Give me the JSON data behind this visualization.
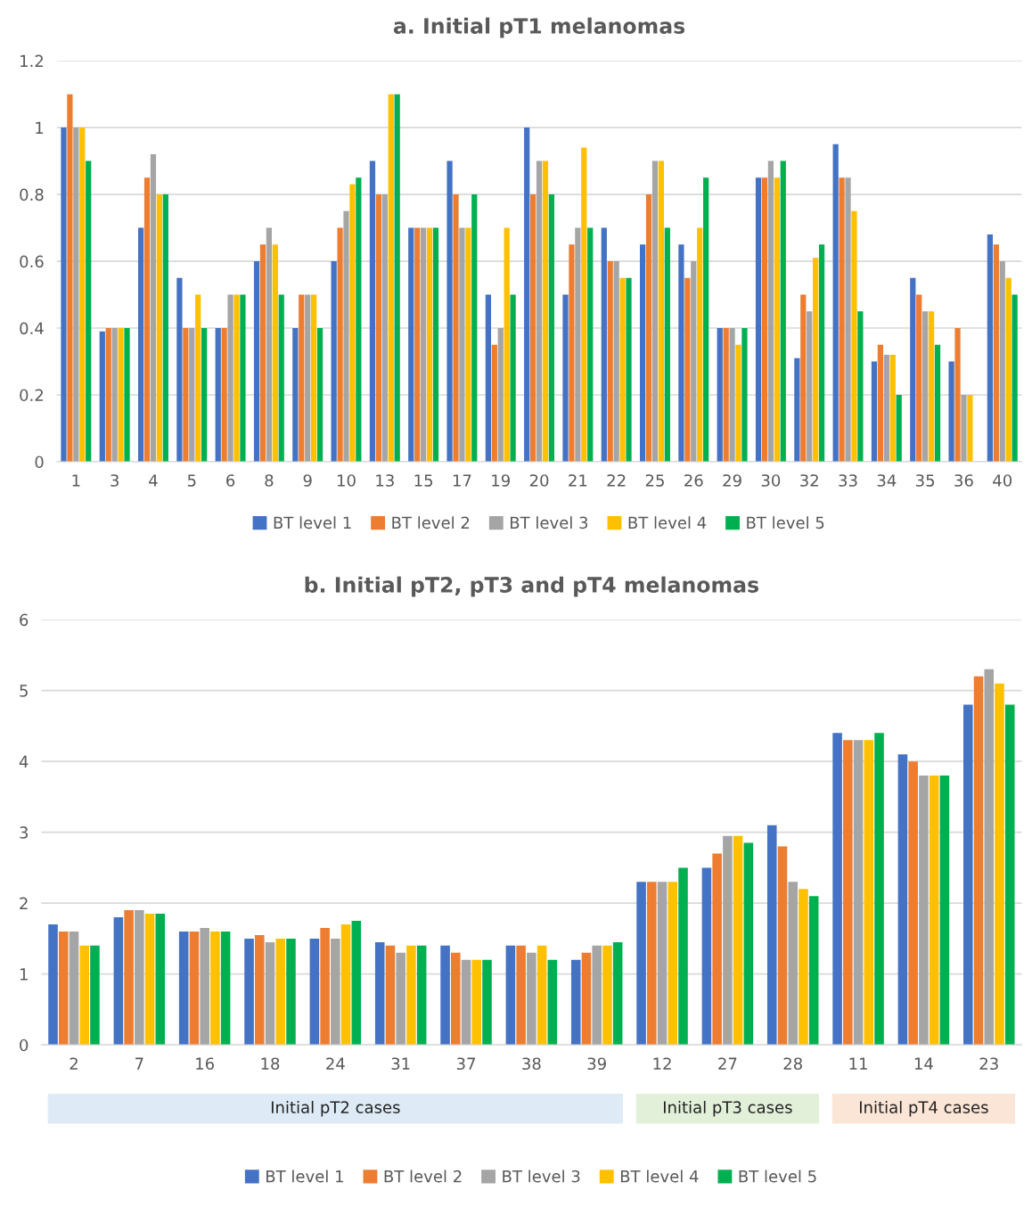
{
  "chart_data": [
    {
      "type": "bar",
      "title": "a. Initial pT1 melanomas",
      "categories": [
        "1",
        "3",
        "4",
        "5",
        "6",
        "8",
        "9",
        "10",
        "13",
        "15",
        "17",
        "19",
        "20",
        "21",
        "22",
        "25",
        "26",
        "29",
        "30",
        "32",
        "33",
        "34",
        "35",
        "36",
        "40"
      ],
      "ylim": [
        0,
        1.2
      ],
      "yticks": [
        {
          "value": 0,
          "label": "0"
        },
        0.2,
        0.4,
        0.6,
        0.8,
        {
          "value": 1,
          "label": "1"
        },
        1.2
      ],
      "grid": "y",
      "legend": "bottom",
      "series": [
        {
          "name": "BT level 1",
          "color": "#4472c4",
          "values": [
            1.0,
            0.39,
            0.7,
            0.55,
            0.4,
            0.6,
            0.4,
            0.6,
            0.9,
            0.7,
            0.9,
            0.5,
            1.0,
            0.5,
            0.7,
            0.65,
            0.65,
            0.4,
            0.85,
            0.31,
            0.95,
            0.3,
            0.55,
            0.3,
            0.68
          ]
        },
        {
          "name": "BT level 2",
          "color": "#ed7d31",
          "values": [
            1.1,
            0.4,
            0.85,
            0.4,
            0.4,
            0.65,
            0.5,
            0.7,
            0.8,
            0.7,
            0.8,
            0.35,
            0.8,
            0.65,
            0.6,
            0.8,
            0.55,
            0.4,
            0.85,
            0.5,
            0.85,
            0.35,
            0.5,
            0.4,
            0.65
          ]
        },
        {
          "name": "BT level 3",
          "color": "#a5a5a5",
          "values": [
            1.0,
            0.4,
            0.92,
            0.4,
            0.5,
            0.7,
            0.5,
            0.75,
            0.8,
            0.7,
            0.7,
            0.4,
            0.9,
            0.7,
            0.6,
            0.9,
            0.6,
            0.4,
            0.9,
            0.45,
            0.85,
            0.32,
            0.45,
            0.2,
            0.6
          ]
        },
        {
          "name": "BT level 4",
          "color": "#ffc000",
          "values": [
            1.0,
            0.4,
            0.8,
            0.5,
            0.5,
            0.65,
            0.5,
            0.83,
            1.1,
            0.7,
            0.7,
            0.7,
            0.9,
            0.94,
            0.55,
            0.9,
            0.7,
            0.35,
            0.85,
            0.61,
            0.75,
            0.32,
            0.45,
            0.2,
            0.55
          ]
        },
        {
          "name": "BT level 5",
          "color": "#00b050",
          "values": [
            0.9,
            0.4,
            0.8,
            0.4,
            0.5,
            0.5,
            0.4,
            0.85,
            1.1,
            0.7,
            0.8,
            0.5,
            0.8,
            0.7,
            0.55,
            0.7,
            0.85,
            0.4,
            0.9,
            0.65,
            0.45,
            0.2,
            0.35,
            null,
            0.5
          ]
        }
      ]
    },
    {
      "type": "bar",
      "title": "b. Initial pT2, pT3 and pT4 melanomas",
      "categories": [
        "2",
        "7",
        "16",
        "18",
        "24",
        "31",
        "37",
        "38",
        "39",
        "12",
        "27",
        "28",
        "11",
        "14",
        "23"
      ],
      "ylim": [
        0,
        6
      ],
      "yticks": [
        0,
        1,
        2,
        3,
        4,
        5,
        6
      ],
      "grid": "y",
      "legend": "bottom",
      "annotations": [
        "Initial pT2 cases",
        "Initial pT3 cases",
        "Initial pT4 cases"
      ],
      "series": [
        {
          "name": "BT level 1",
          "color": "#4472c4",
          "values": [
            1.7,
            1.8,
            1.6,
            1.5,
            1.5,
            1.45,
            1.4,
            1.4,
            1.2,
            2.3,
            2.5,
            3.1,
            4.4,
            4.1,
            4.8
          ]
        },
        {
          "name": "BT level 2",
          "color": "#ed7d31",
          "values": [
            1.6,
            1.9,
            1.6,
            1.55,
            1.65,
            1.4,
            1.3,
            1.4,
            1.3,
            2.3,
            2.7,
            2.8,
            4.3,
            4.0,
            5.2
          ]
        },
        {
          "name": "BT level 3",
          "color": "#a5a5a5",
          "values": [
            1.6,
            1.9,
            1.65,
            1.45,
            1.5,
            1.3,
            1.2,
            1.3,
            1.4,
            2.3,
            2.95,
            2.3,
            4.3,
            3.8,
            5.3
          ]
        },
        {
          "name": "BT level 4",
          "color": "#ffc000",
          "values": [
            1.4,
            1.85,
            1.6,
            1.5,
            1.7,
            1.4,
            1.2,
            1.4,
            1.4,
            2.3,
            2.95,
            2.2,
            4.3,
            3.8,
            5.1
          ]
        },
        {
          "name": "BT level 5",
          "color": "#00b050",
          "values": [
            1.4,
            1.85,
            1.6,
            1.5,
            1.75,
            1.4,
            1.2,
            1.2,
            1.45,
            2.5,
            2.85,
            2.1,
            4.4,
            3.8,
            4.8
          ]
        }
      ]
    }
  ]
}
